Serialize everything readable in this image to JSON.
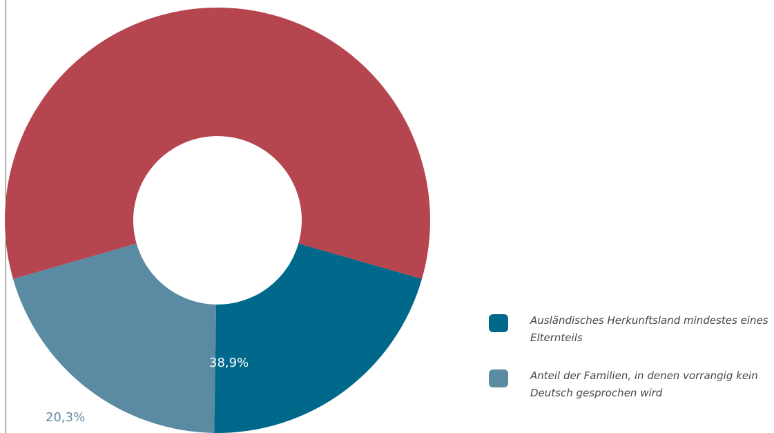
{
  "chart_data": {
    "type": "pie",
    "donut": true,
    "slices": [
      {
        "label": "",
        "value": 58.9,
        "color": "#b5454f"
      },
      {
        "label": "Ausländisches Herkunftsland mindestes eines Elternteils",
        "value": 20.8,
        "color": "#00688a"
      },
      {
        "label": "Anteil der Familien, in denen vorrangig kein Deutsch gesprochen wird",
        "value": 20.3,
        "color": "#5b8aa3"
      }
    ],
    "data_labels": {
      "inner": "38,9%",
      "outer": "20,3%"
    },
    "legend": {
      "placement": "bottom-right",
      "items": [
        {
          "label": "Ausländisches Herkunftsland mindestes eines Elternteils",
          "color": "#00688a"
        },
        {
          "label": "Anteil der Familien, in denen vorrangig kein Deutsch gesprochen wird",
          "color": "#5b8aa3"
        }
      ]
    }
  }
}
